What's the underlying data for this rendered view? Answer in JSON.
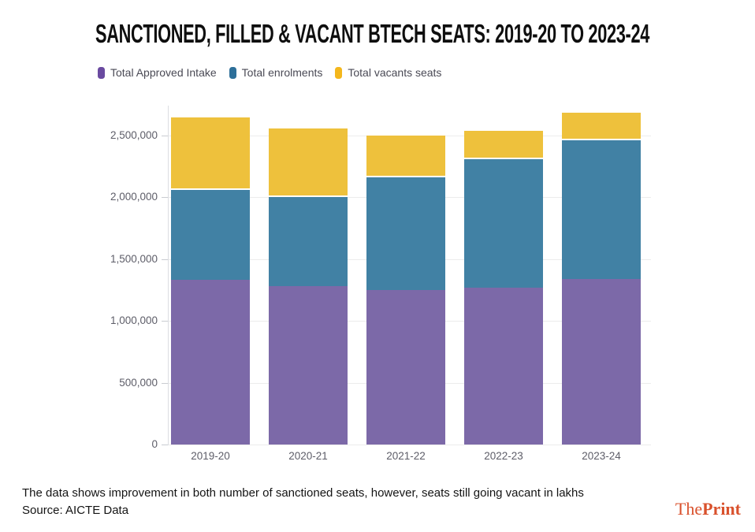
{
  "title": "SANCTIONED, FILLED & VACANT BTECH SEATS: 2019-20 TO 2023-24",
  "chart_data": {
    "type": "bar",
    "stacked": true,
    "title": "SANCTIONED, FILLED & VACANT BTECH SEATS: 2019-20 TO 2023-24",
    "categories": [
      "2019-20",
      "2020-21",
      "2021-22",
      "2022-23",
      "2023-24"
    ],
    "series": [
      {
        "name": "Total Approved Intake",
        "color": "#7c69a8",
        "legend_color": "#6a4aa0",
        "values": [
          1330000,
          1285000,
          1250000,
          1270000,
          1340000
        ]
      },
      {
        "name": "Total enrolments",
        "color": "#4181a4",
        "legend_color": "#2d6f99",
        "values": [
          740000,
          730000,
          925000,
          1050000,
          1135000
        ]
      },
      {
        "name": "Total vacants seats",
        "color": "#eec13c",
        "legend_color": "#f4b71c",
        "values": [
          590000,
          555000,
          340000,
          230000,
          225000
        ]
      }
    ],
    "stacked_totals": [
      2660000,
      2570000,
      2515000,
      2550000,
      2700000
    ],
    "xlabel": "",
    "ylabel": "",
    "ylim": [
      0,
      2750000
    ],
    "yticks": [
      0,
      500000,
      1000000,
      1500000,
      2000000,
      2500000
    ],
    "ytick_labels": [
      "0",
      "500,000",
      "1,000,000",
      "1,500,000",
      "2,000,000",
      "2,500,000"
    ],
    "grid": "horizontal",
    "legend_position": "top"
  },
  "footer": {
    "note": "The data shows improvement in both number of sanctioned seats, however, seats still going vacant in lakhs",
    "source": "Source: AICTE Data"
  },
  "logo": {
    "part1": "The",
    "part2": "Print",
    "color": "#d9512c"
  }
}
